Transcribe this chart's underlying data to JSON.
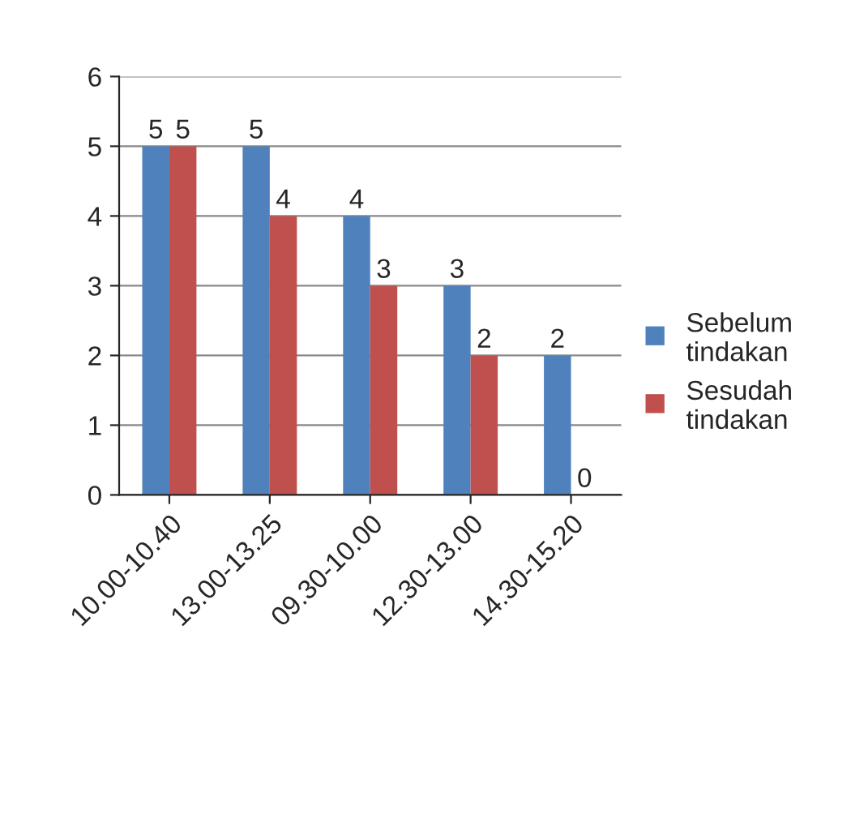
{
  "chart_data": {
    "type": "bar",
    "categories": [
      "10.00-10.40",
      "13.00-13.25",
      "09.30-10.00",
      "12.30-13.00",
      "14.30-15.20"
    ],
    "series": [
      {
        "name": "Sebelum tindakan",
        "color": "#4f81bd",
        "values": [
          5,
          5,
          4,
          3,
          2
        ]
      },
      {
        "name": "Sesudah tindakan",
        "color": "#c0504d",
        "values": [
          5,
          4,
          3,
          2,
          0
        ]
      }
    ],
    "ylim": [
      0,
      6
    ],
    "yticks": [
      0,
      1,
      2,
      3,
      4,
      5,
      6
    ],
    "grid": "y",
    "legend": "right",
    "data_labels": true
  }
}
